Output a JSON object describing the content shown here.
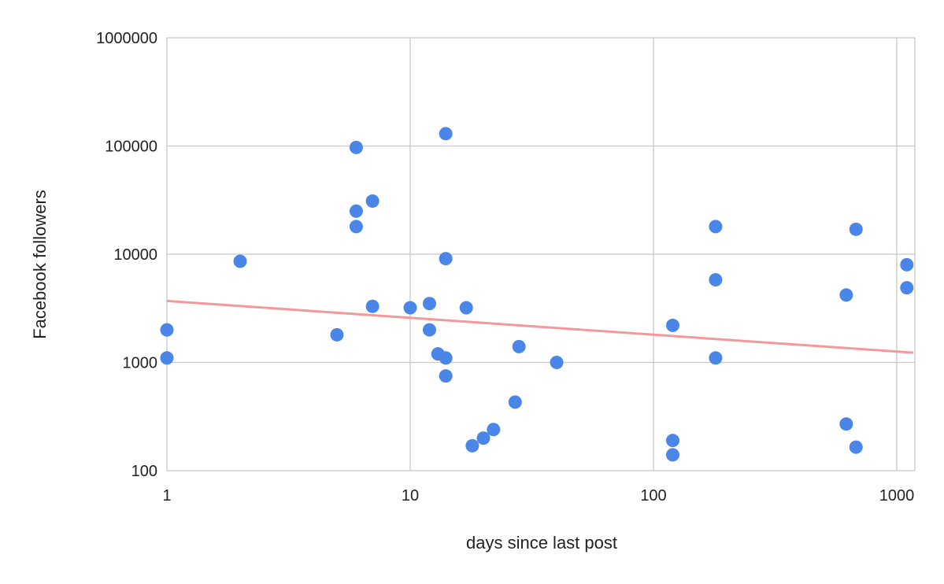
{
  "chart_data": {
    "type": "scatter",
    "title": "",
    "xlabel": "days since last post",
    "ylabel": "Facebook followers",
    "x_scale": "log",
    "y_scale": "log",
    "xlim": [
      1,
      1200
    ],
    "ylim": [
      100,
      1000000
    ],
    "x_ticks": [
      "1",
      "10",
      "100",
      "1000"
    ],
    "y_ticks": [
      "100",
      "1000",
      "10000",
      "100000",
      "1000000"
    ],
    "grid": true,
    "legend": "none",
    "point_color": "#4a86e8",
    "trendline_color": "#f4999b",
    "trendline": {
      "type": "power",
      "points": [
        [
          1,
          3700
        ],
        [
          1200,
          1230
        ]
      ]
    },
    "points": [
      [
        1,
        2000
      ],
      [
        1,
        1100
      ],
      [
        2,
        8600
      ],
      [
        5,
        1800
      ],
      [
        6,
        97000
      ],
      [
        6,
        25000
      ],
      [
        6,
        18000
      ],
      [
        7,
        31000
      ],
      [
        7,
        3300
      ],
      [
        10,
        3200
      ],
      [
        12,
        3500
      ],
      [
        12,
        2000
      ],
      [
        13,
        1200
      ],
      [
        14,
        130000
      ],
      [
        14,
        9100
      ],
      [
        14,
        1100
      ],
      [
        14,
        750
      ],
      [
        17,
        3200
      ],
      [
        18,
        170
      ],
      [
        20,
        200
      ],
      [
        22,
        240
      ],
      [
        27,
        430
      ],
      [
        28,
        1400
      ],
      [
        40,
        1000
      ],
      [
        120,
        2200
      ],
      [
        120,
        190
      ],
      [
        120,
        140
      ],
      [
        180,
        18000
      ],
      [
        180,
        5800
      ],
      [
        180,
        1100
      ],
      [
        620,
        4200
      ],
      [
        620,
        270
      ],
      [
        680,
        17000
      ],
      [
        680,
        165
      ],
      [
        1100,
        8000
      ],
      [
        1100,
        4900
      ]
    ]
  }
}
